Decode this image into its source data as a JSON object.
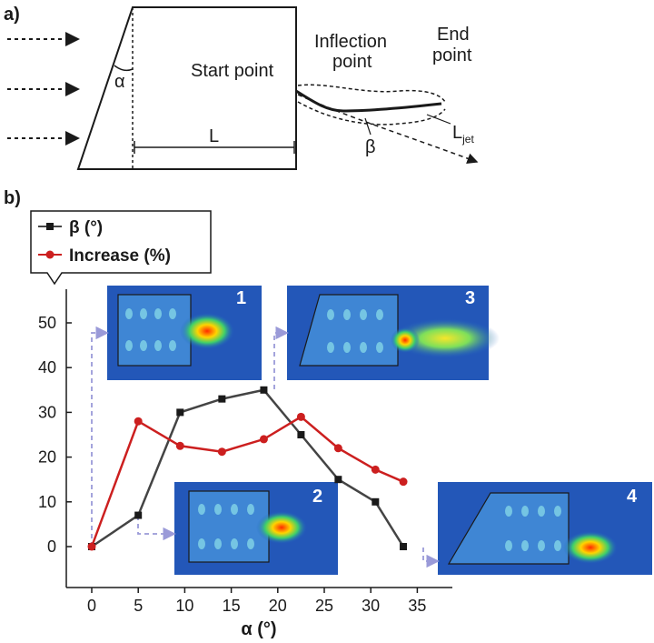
{
  "panels": {
    "a": "a)",
    "b": "b)"
  },
  "schematic": {
    "alpha": "α",
    "length": "L",
    "start_point": "Start point",
    "inflection_line1": "Inflection",
    "inflection_line2": "point",
    "end_line1": "End",
    "end_line2": "point",
    "beta": "β",
    "ljet_main": "L",
    "ljet_sub": "jet"
  },
  "colors": {
    "beta_series": "#444444",
    "increase_series": "#cc1f1f",
    "guide": "#9a9ad8",
    "axis": "#1a1a1a"
  },
  "insets": [
    {
      "label": "1",
      "shape": "rectangular",
      "alpha_deg": 0
    },
    {
      "label": "2",
      "shape": "rectangular",
      "alpha_deg": 5
    },
    {
      "label": "3",
      "shape": "tapered",
      "alpha_deg": 18
    },
    {
      "label": "4",
      "shape": "tapered",
      "alpha_deg": 33
    }
  ],
  "chart_data": {
    "type": "line",
    "x": [
      0,
      5,
      9.5,
      14,
      18.5,
      22.5,
      26.5,
      30.5,
      33.5
    ],
    "xticks": [
      "0",
      "5",
      "10",
      "15",
      "20",
      "25",
      "30",
      "35"
    ],
    "yticks": [
      "0",
      "10",
      "20",
      "30",
      "40",
      "50"
    ],
    "xlim": [
      -2,
      37
    ],
    "ylim": [
      -5,
      55
    ],
    "xlabel": "α (°)",
    "ylabel": "",
    "legend_position": "top-left",
    "grid": false,
    "series": [
      {
        "name": "β (°)",
        "marker": "square",
        "color": "#444444",
        "values": [
          0,
          7,
          30,
          33,
          35,
          25,
          15,
          10,
          0
        ]
      },
      {
        "name": "Increase (%)",
        "marker": "circle",
        "color": "#cc1f1f",
        "values": [
          0,
          28,
          22.5,
          21.2,
          24,
          29,
          22,
          17.2,
          14.5
        ]
      }
    ]
  }
}
